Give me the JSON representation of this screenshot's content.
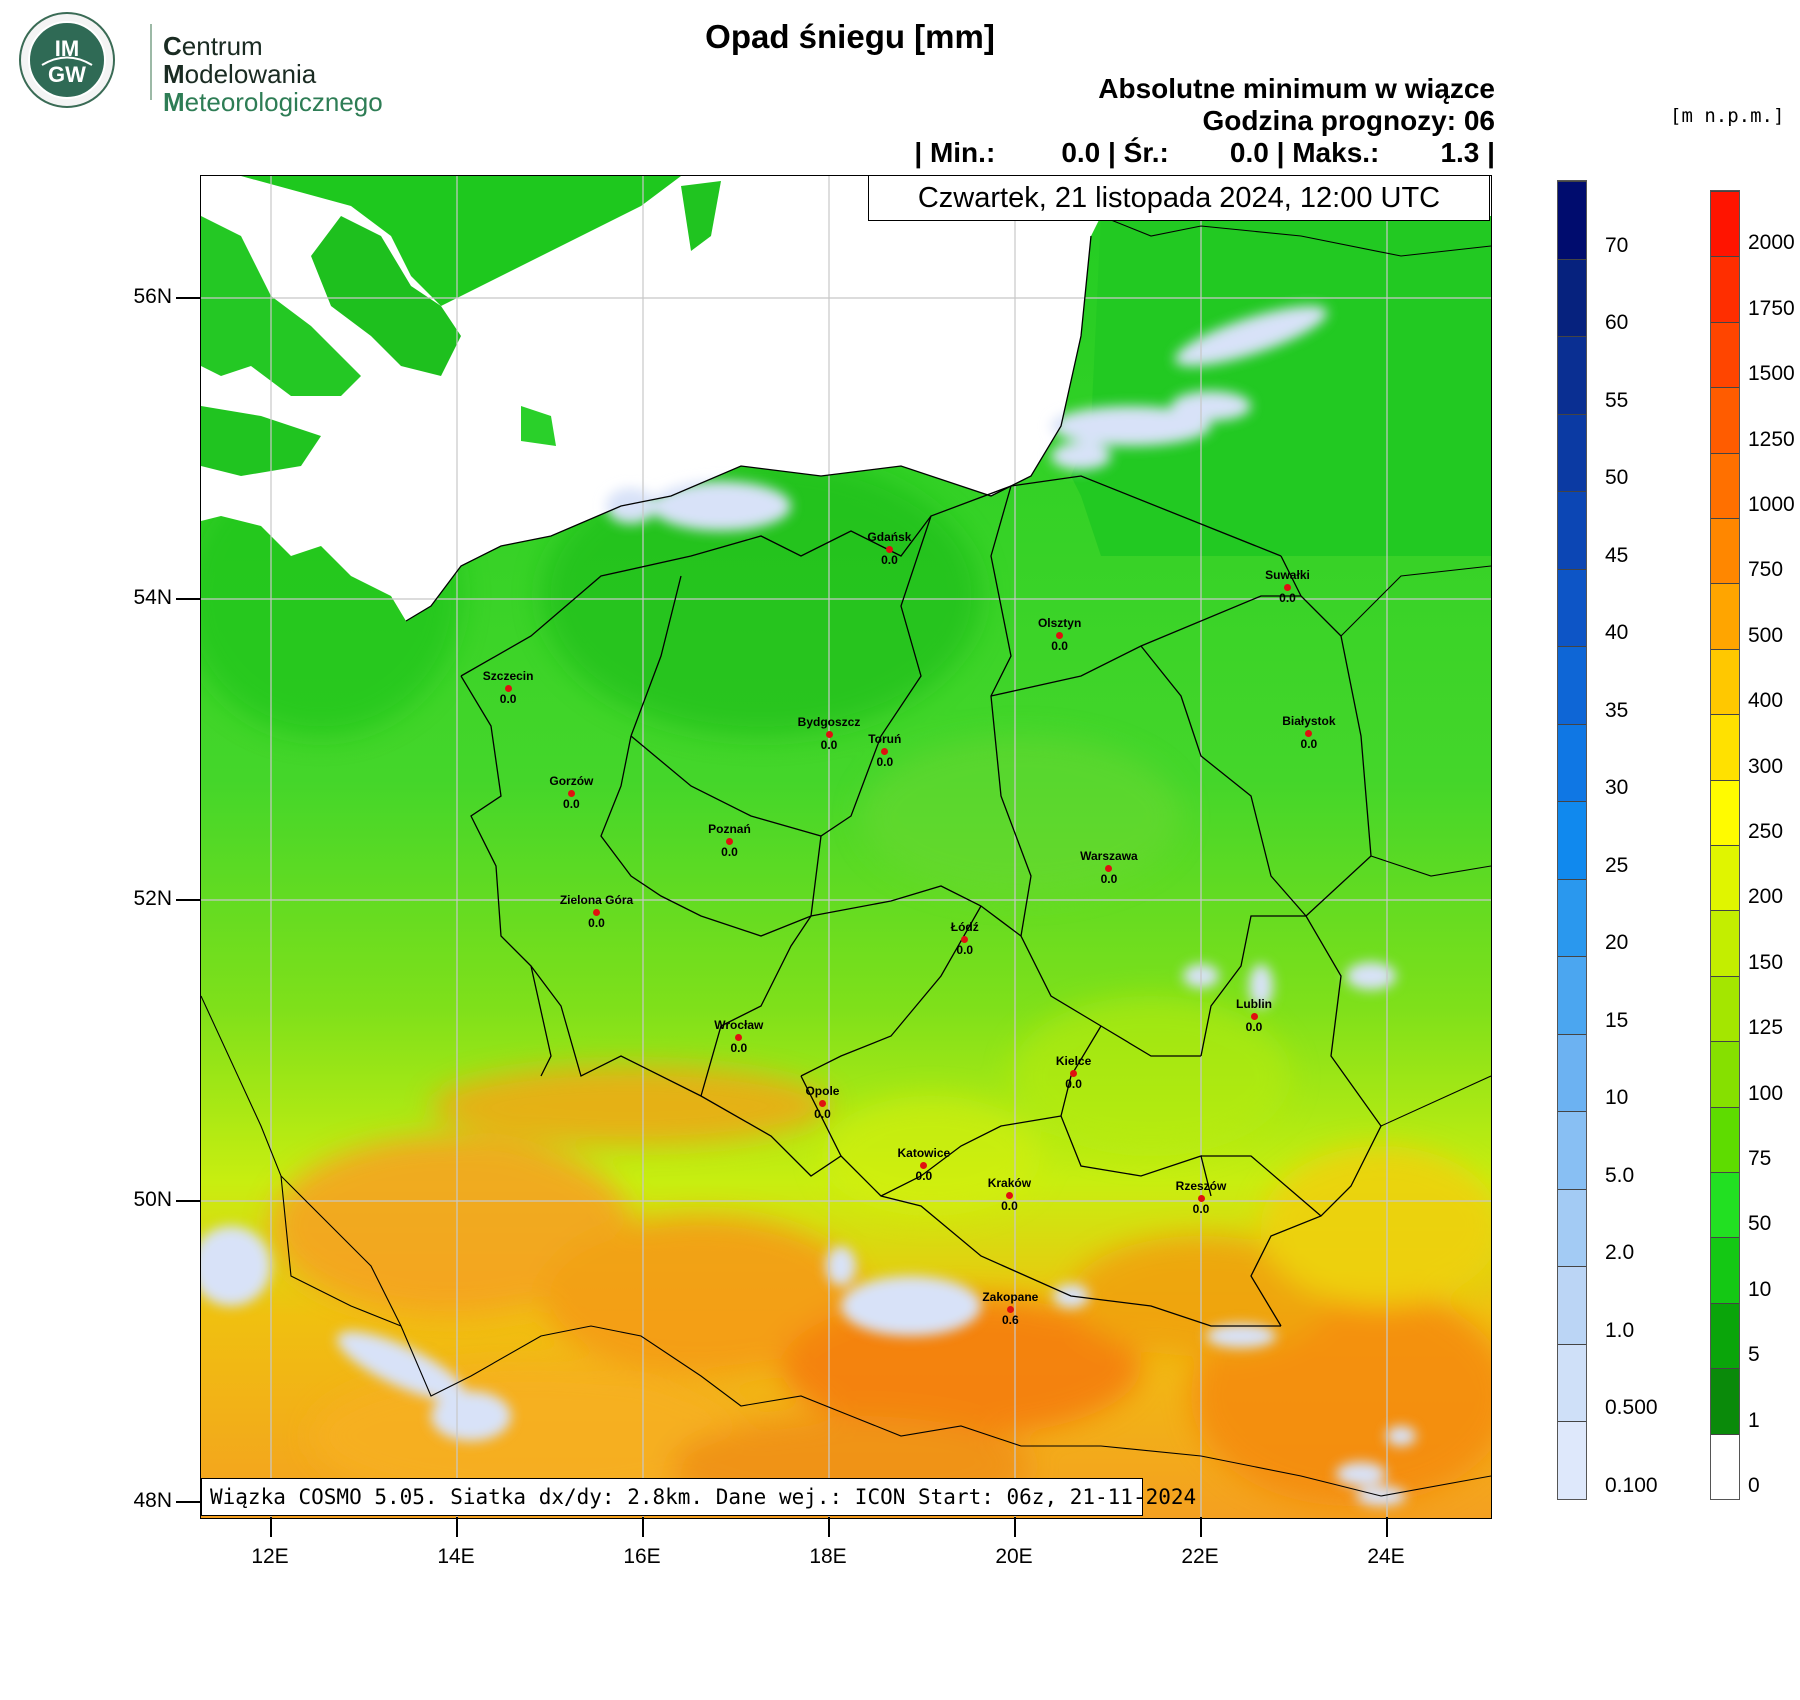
{
  "logo": {
    "badge_text_top": "IM",
    "badge_text_bottom": "GW",
    "line1_initial": "C",
    "line1_rest": "entrum",
    "line2_initial": "M",
    "line2_rest": "odelowania",
    "line3_initial": "M",
    "line3_rest": "eteorologicznego"
  },
  "header": {
    "title": "Opad śniegu [mm]",
    "subtitle1": "Absolutne minimum w wiązce",
    "subtitle2": "Godzina prognozy: 06",
    "stats": {
      "sep": "|",
      "min_label": "Min.:",
      "min_value": "0.0",
      "avg_label": "Śr.:",
      "avg_value": "0.0",
      "max_label": "Maks.:",
      "max_value": "1.3"
    },
    "date": "Czwartek, 21 listopada 2024, 12:00 UTC"
  },
  "footer": {
    "text": "Wiązka COSMO 5.05. Siatka dx/dy: 2.8km. Dane wej.: ICON Start: 06z, 21-11-2024"
  },
  "axes": {
    "lat_labels": [
      "56N",
      "54N",
      "52N",
      "50N",
      "48N"
    ],
    "lon_labels": [
      "12E",
      "14E",
      "16E",
      "18E",
      "20E",
      "22E",
      "24E"
    ]
  },
  "snow_scale": {
    "labels": [
      "70",
      "60",
      "55",
      "50",
      "45",
      "40",
      "35",
      "30",
      "25",
      "20",
      "15",
      "10",
      "5.0",
      "2.0",
      "1.0",
      "0.500",
      "0.100"
    ],
    "colors": [
      "#000c6e",
      "#06227e",
      "#0a2f92",
      "#0b3aa3",
      "#0c46b4",
      "#0d55c6",
      "#0e66d6",
      "#0f77e4",
      "#1089ee",
      "#2a98ee",
      "#4ba6f0",
      "#6cb2f2",
      "#88bff3",
      "#a3cbf4",
      "#bbd5f5",
      "#cfe0f8",
      "#dee8fb"
    ]
  },
  "elev_scale": {
    "unit": "[m n.p.m.]",
    "labels": [
      "2000",
      "1750",
      "1500",
      "1250",
      "1000",
      "750",
      "500",
      "400",
      "300",
      "250",
      "200",
      "150",
      "125",
      "100",
      "75",
      "50",
      "10",
      "5",
      "1",
      "0"
    ],
    "colors": [
      "#ff1400",
      "#ff2e00",
      "#ff4500",
      "#ff5c00",
      "#ff7000",
      "#ff8700",
      "#ffa500",
      "#ffc800",
      "#ffe100",
      "#fffb00",
      "#e0f500",
      "#c3ee00",
      "#a4e600",
      "#86e000",
      "#5edc00",
      "#22e022",
      "#14c814",
      "#0aa50a",
      "#0a8a0a",
      "#ffffff"
    ]
  },
  "cities": [
    {
      "name": "Gdańsk",
      "value": "0.0",
      "lon": 18.65,
      "lat": 54.35
    },
    {
      "name": "Suwałki",
      "value": "0.0",
      "lon": 22.93,
      "lat": 54.1
    },
    {
      "name": "Olsztyn",
      "value": "0.0",
      "lon": 20.48,
      "lat": 53.78
    },
    {
      "name": "Szczecin",
      "value": "0.0",
      "lon": 14.55,
      "lat": 53.43
    },
    {
      "name": "Bydgoszcz",
      "value": "0.0",
      "lon": 18.0,
      "lat": 53.12
    },
    {
      "name": "Toruń",
      "value": "0.0",
      "lon": 18.6,
      "lat": 53.01
    },
    {
      "name": "Białystok",
      "value": "0.0",
      "lon": 23.16,
      "lat": 53.13
    },
    {
      "name": "Gorzów",
      "value": "0.0",
      "lon": 15.23,
      "lat": 52.73
    },
    {
      "name": "Poznań",
      "value": "0.0",
      "lon": 16.93,
      "lat": 52.41
    },
    {
      "name": "Warszawa",
      "value": "0.0",
      "lon": 21.01,
      "lat": 52.23
    },
    {
      "name": "Zielona Góra",
      "value": "0.0",
      "lon": 15.5,
      "lat": 51.94
    },
    {
      "name": "Łódź",
      "value": "0.0",
      "lon": 19.46,
      "lat": 51.76
    },
    {
      "name": "Lublin",
      "value": "0.0",
      "lon": 22.57,
      "lat": 51.25
    },
    {
      "name": "Wrocław",
      "value": "0.0",
      "lon": 17.03,
      "lat": 51.11
    },
    {
      "name": "Kielce",
      "value": "0.0",
      "lon": 20.63,
      "lat": 50.87
    },
    {
      "name": "Opole",
      "value": "0.0",
      "lon": 17.93,
      "lat": 50.67
    },
    {
      "name": "Katowice",
      "value": "0.0",
      "lon": 19.02,
      "lat": 50.26
    },
    {
      "name": "Kraków",
      "value": "0.0",
      "lon": 19.94,
      "lat": 50.06
    },
    {
      "name": "Rzeszów",
      "value": "0.0",
      "lon": 22.0,
      "lat": 50.04
    },
    {
      "name": "Zakopane",
      "value": "0.6",
      "lon": 19.95,
      "lat": 49.3
    }
  ],
  "colors": {
    "city_dot": "#e01010",
    "sea": "#ffffff",
    "lowland": "#34d634",
    "snow": "#d8e2f8",
    "grid": "#c8c8c8"
  }
}
